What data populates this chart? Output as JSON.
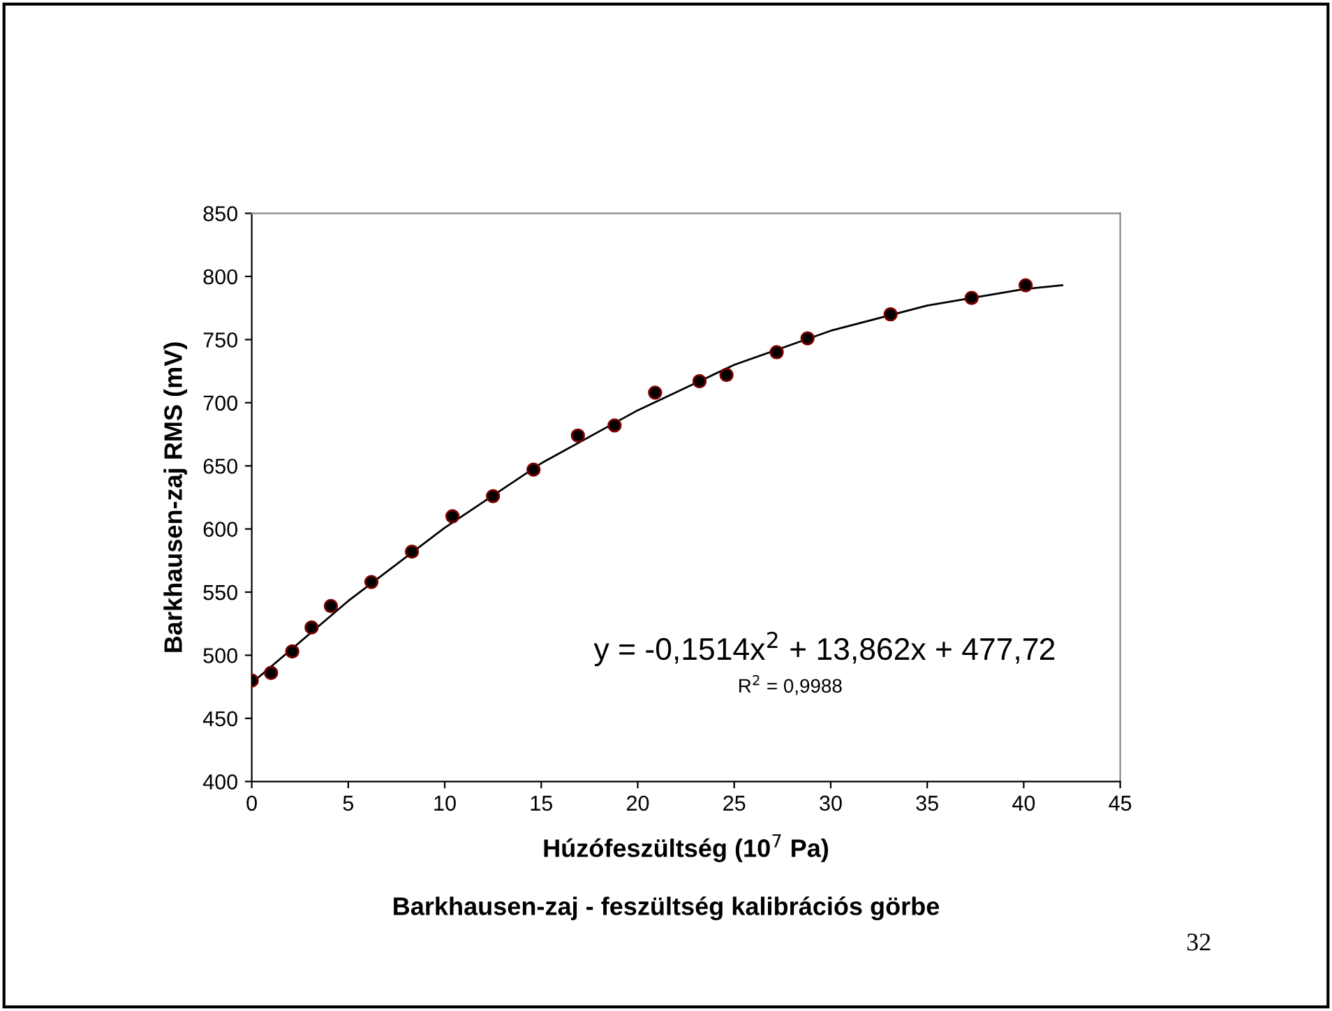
{
  "chart_data": {
    "type": "scatter",
    "title": "Barkhausen-zaj - feszültség kalibrációs görbe",
    "xlabel": "Húzófeszültség (10$^{7}$ Pa)",
    "ylabel": "Barkhausen-zaj RMS (mV)",
    "series": [
      {
        "marker": "circle",
        "color": "#000000",
        "x": [
          0,
          1,
          2.1,
          3.1,
          4.1,
          6.2,
          8.3,
          10.4,
          12.5,
          14.6,
          16.9,
          18.8,
          20.9,
          23.2,
          24.6,
          27.2,
          28.8,
          33.1,
          37.3,
          40.1
        ],
        "values": [
          480,
          486,
          503,
          522,
          539,
          558,
          582,
          610,
          626,
          647,
          674,
          682,
          708,
          717,
          722,
          740,
          751,
          770,
          783,
          793
        ]
      },
      {
        "type": "line",
        "color": "#000000",
        "x": [
          0,
          5,
          10,
          15,
          20,
          25,
          30,
          35,
          40,
          42
        ],
        "values": [
          478,
          543,
          601,
          652,
          694,
          730,
          757,
          777,
          790,
          793
        ]
      }
    ],
    "xlim": [
      0,
      45
    ],
    "xticks": [
      0,
      5,
      10,
      15,
      20,
      25,
      30,
      35,
      40,
      45
    ],
    "ylim": [
      400,
      850
    ],
    "yticks": [
      400,
      450,
      500,
      550,
      600,
      650,
      700,
      750,
      800,
      850
    ],
    "grid": false,
    "legend": false,
    "annotations": [
      "y = -0,1514x$^{2}$ + 13,862x + 477,72",
      "R$^{2}$ = 0,9988",
      "32"
    ]
  }
}
